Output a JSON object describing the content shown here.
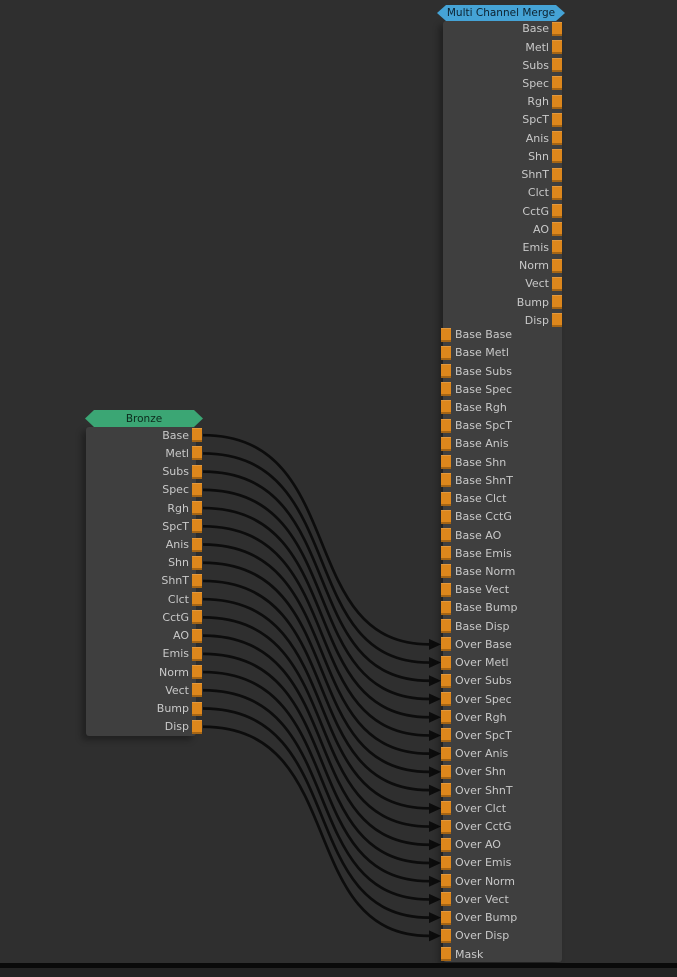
{
  "colors": {
    "background": "#2f2f2f",
    "node_body": "#3f3f3f",
    "port": "#dd871c",
    "wire": "#0c0c0c",
    "label": "#c9c9c9",
    "bronze_header": "#3ba674",
    "bronze_header_text": "#0c2a1c",
    "merge_header": "#45a3d6",
    "merge_header_text": "#0c2230",
    "bottom_border": "#0a0a0a",
    "bottom_area": "#242424"
  },
  "nodes": {
    "bronze": {
      "title": "Bronze",
      "outputs": [
        "Base",
        "Metl",
        "Subs",
        "Spec",
        "Rgh",
        "SpcT",
        "Anis",
        "Shn",
        "ShnT",
        "Clct",
        "CctG",
        "AO",
        "Emis",
        "Norm",
        "Vect",
        "Bump",
        "Disp"
      ]
    },
    "merge": {
      "title": "Multi Channel Merge",
      "outputs": [
        "Base",
        "Metl",
        "Subs",
        "Spec",
        "Rgh",
        "SpcT",
        "Anis",
        "Shn",
        "ShnT",
        "Clct",
        "CctG",
        "AO",
        "Emis",
        "Norm",
        "Vect",
        "Bump",
        "Disp"
      ],
      "inputs": [
        "Base Base",
        "Base Metl",
        "Base Subs",
        "Base Spec",
        "Base Rgh",
        "Base SpcT",
        "Base Anis",
        "Base Shn",
        "Base ShnT",
        "Base Clct",
        "Base CctG",
        "Base AO",
        "Base Emis",
        "Base Norm",
        "Base Vect",
        "Base Bump",
        "Base Disp",
        "Over Base",
        "Over Metl",
        "Over Subs",
        "Over Spec",
        "Over Rgh",
        "Over SpcT",
        "Over Anis",
        "Over Shn",
        "Over ShnT",
        "Over Clct",
        "Over CctG",
        "Over AO",
        "Over Emis",
        "Over Norm",
        "Over Vect",
        "Over Bump",
        "Over Disp",
        "Mask"
      ]
    }
  },
  "connections": [
    {
      "from": "Base",
      "to": "Over Base"
    },
    {
      "from": "Metl",
      "to": "Over Metl"
    },
    {
      "from": "Subs",
      "to": "Over Subs"
    },
    {
      "from": "Spec",
      "to": "Over Spec"
    },
    {
      "from": "Rgh",
      "to": "Over Rgh"
    },
    {
      "from": "SpcT",
      "to": "Over SpcT"
    },
    {
      "from": "Anis",
      "to": "Over Anis"
    },
    {
      "from": "Shn",
      "to": "Over Shn"
    },
    {
      "from": "ShnT",
      "to": "Over ShnT"
    },
    {
      "from": "Clct",
      "to": "Over Clct"
    },
    {
      "from": "CctG",
      "to": "Over CctG"
    },
    {
      "from": "AO",
      "to": "Over AO"
    },
    {
      "from": "Emis",
      "to": "Over Emis"
    },
    {
      "from": "Norm",
      "to": "Over Norm"
    },
    {
      "from": "Vect",
      "to": "Over Vect"
    },
    {
      "from": "Bump",
      "to": "Over Bump"
    },
    {
      "from": "Disp",
      "to": "Over Disp"
    }
  ]
}
